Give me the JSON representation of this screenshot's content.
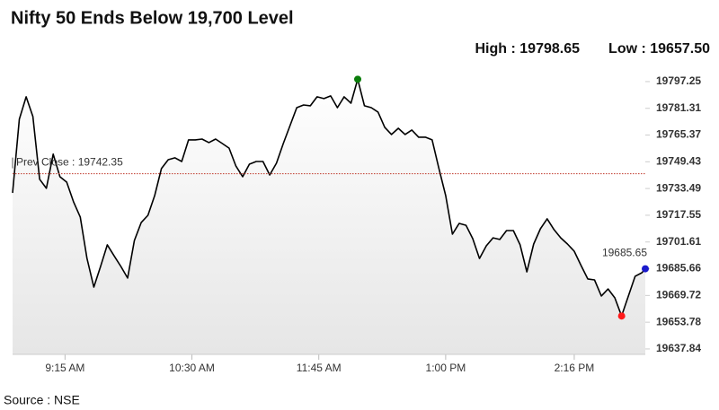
{
  "chart_data": {
    "type": "line",
    "title": "Nifty 50 Ends Below 19,700 Level",
    "source": "Source : NSE",
    "high_label": "High : 19798.65",
    "low_label": "Low : 19657.50",
    "last_label": "19685.65",
    "prev_close": {
      "label": "Prev Close : 19742.35",
      "value": 19742.35,
      "color": "#c0392b"
    },
    "x": [
      "08:44",
      "08:48",
      "08:52",
      "08:56",
      "09:00",
      "09:04",
      "09:08",
      "09:12",
      "09:16",
      "09:20",
      "09:24",
      "09:28",
      "09:32",
      "09:36",
      "09:40",
      "09:44",
      "09:48",
      "09:52",
      "09:56",
      "10:00",
      "10:04",
      "10:08",
      "10:12",
      "10:16",
      "10:20",
      "10:24",
      "10:28",
      "10:32",
      "10:36",
      "10:40",
      "10:44",
      "10:48",
      "10:52",
      "10:56",
      "11:00",
      "11:04",
      "11:08",
      "11:12",
      "11:16",
      "11:20",
      "11:24",
      "11:28",
      "11:32",
      "11:36",
      "11:40",
      "11:44",
      "11:48",
      "11:52",
      "11:56",
      "12:00",
      "12:04",
      "12:08",
      "12:12",
      "12:16",
      "12:20",
      "12:24",
      "12:28",
      "12:32",
      "12:36",
      "12:40",
      "12:44",
      "12:48",
      "12:52",
      "12:56",
      "13:00",
      "13:04",
      "13:08",
      "13:12",
      "13:16",
      "13:20",
      "13:24",
      "13:28",
      "13:32",
      "13:36",
      "13:40",
      "13:44",
      "13:48",
      "13:52",
      "13:56",
      "14:00",
      "14:04",
      "14:08",
      "14:12",
      "14:16",
      "14:20",
      "14:24",
      "14:28",
      "14:32",
      "14:36",
      "14:40",
      "14:44",
      "14:48",
      "14:52",
      "14:56",
      "14:58"
    ],
    "series": [
      {
        "name": "Nifty 50",
        "color": "#000000",
        "values": [
          19730.9,
          19774.8,
          19788.2,
          19776.4,
          19739.0,
          19733.6,
          19754.0,
          19740.5,
          19737.3,
          19725.6,
          19716.5,
          19691.8,
          19674.7,
          19687.0,
          19699.9,
          19693.4,
          19687.0,
          19680.1,
          19702.5,
          19713.2,
          19717.5,
          19729.3,
          19745.4,
          19750.7,
          19751.8,
          19749.6,
          19762.5,
          19762.5,
          19763.0,
          19760.9,
          19763.0,
          19760.3,
          19757.6,
          19746.9,
          19740.5,
          19748.0,
          19749.6,
          19749.6,
          19741.6,
          19748.6,
          19760.3,
          19771.0,
          19781.7,
          19783.3,
          19782.8,
          19788.2,
          19787.1,
          19788.7,
          19781.7,
          19788.2,
          19784.4,
          19798.65,
          19782.8,
          19781.7,
          19779.1,
          19770.0,
          19765.7,
          19769.4,
          19765.7,
          19768.4,
          19764.1,
          19764.1,
          19762.5,
          19745.4,
          19729.3,
          19706.3,
          19712.7,
          19711.6,
          19703.6,
          19691.8,
          19699.3,
          19704.1,
          19703.1,
          19708.4,
          19708.4,
          19699.9,
          19683.8,
          19700.4,
          19709.5,
          19715.4,
          19709.0,
          19704.1,
          19700.4,
          19696.1,
          19687.6,
          19679.6,
          19679.0,
          19669.4,
          19673.6,
          19668.3,
          19657.5,
          19669.4,
          19681.2,
          19683.3,
          19685.65
        ]
      }
    ],
    "high_point": {
      "index": 51,
      "color": "#0a7d0a"
    },
    "low_point": {
      "index": 90,
      "color": "#ff1a1a"
    },
    "last_point": {
      "index": 94,
      "color": "#1a1acc"
    },
    "xlim": [
      "08:44",
      "14:58"
    ],
    "xticks": [
      {
        "value": "09:15",
        "label": "9:15 AM"
      },
      {
        "value": "10:30",
        "label": "10:30 AM"
      },
      {
        "value": "11:45",
        "label": "11:45 AM"
      },
      {
        "value": "13:00",
        "label": "1:00 PM"
      },
      {
        "value": "14:16",
        "label": "2:16 PM"
      }
    ],
    "ylim": [
      19634.6,
      19803.1
    ],
    "yticks": [
      19797.25,
      19781.31,
      19765.37,
      19749.43,
      19733.49,
      19717.55,
      19701.61,
      19685.66,
      19669.72,
      19653.78,
      19637.84
    ]
  }
}
